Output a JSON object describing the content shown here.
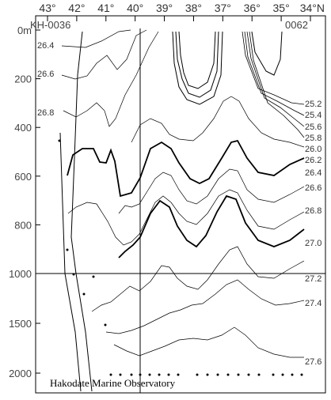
{
  "chart_data": {
    "type": "contour",
    "latitude_ticks": [
      "43°",
      "42°",
      "41°",
      "40°",
      "39°",
      "38°",
      "37°",
      "36°",
      "35°",
      "34°N"
    ],
    "station_left": "KH-0036",
    "station_right": "0062",
    "depth_ticks_upper": [
      "0m",
      "200",
      "400",
      "600",
      "800",
      "1000"
    ],
    "depth_ticks_lower": [
      "1500",
      "2000"
    ],
    "left_labels": [
      "26.4",
      "26.6",
      "26.8"
    ],
    "right_labels": [
      "25.2",
      "25.4",
      "25.6",
      "25.8",
      "26.0",
      "26.2",
      "26.4",
      "26.6",
      "26.8",
      "27.0",
      "27.2",
      "27.4",
      "27.6"
    ],
    "bold_contours": [
      "26.0",
      "27.0"
    ],
    "credit": "Hakodate Marine Observatory"
  }
}
